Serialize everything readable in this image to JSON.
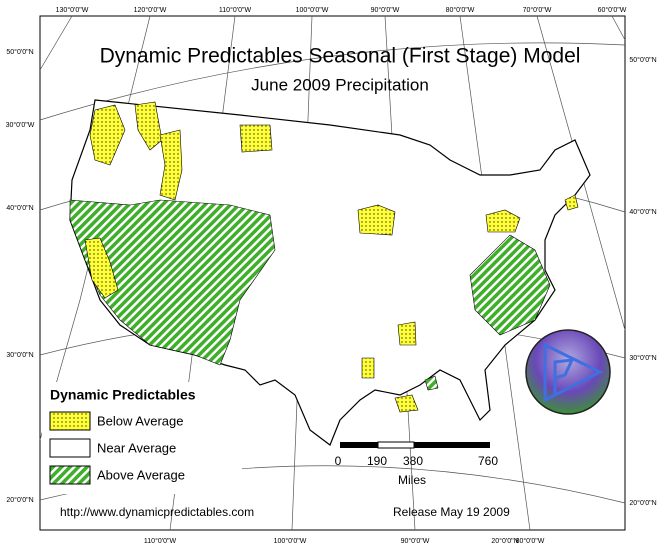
{
  "title": "Dynamic Predictables Seasonal (First Stage) Model",
  "subtitle": "June 2009 Precipitation",
  "legend": {
    "title": "Dynamic Predictables",
    "items": [
      "Below Average",
      "Near Average",
      "Above Average"
    ]
  },
  "scale_bar": {
    "labels": [
      "0",
      "190",
      "380",
      "760"
    ],
    "unit": "Miles"
  },
  "footer": {
    "url": "http://www.dynamicpredictables.com",
    "release": "Release May 19 2009"
  },
  "graticule_labels": {
    "top": [
      "130°0'0\"W",
      "120°0'0\"W",
      "110°0'0\"W",
      "100°0'0\"W",
      "90°0'0\"W",
      "80°0'0\"W",
      "70°0'0\"W",
      "60°0'0\"W"
    ],
    "bottom": [
      "110°0'0\"W",
      "100°0'0\"W",
      "90°0'0\"W",
      "20°0'0\"N",
      "80°0'0\"W"
    ],
    "left": [
      "50°0'0\"N",
      "30°0'0\"W",
      "40°0'0\"N",
      "30°0'0\"N",
      "20°0'0\"N"
    ],
    "right": [
      "50°0'0\"N",
      "40°0'0\"N",
      "30°0'0\"N",
      "20°0'0\"N"
    ]
  }
}
